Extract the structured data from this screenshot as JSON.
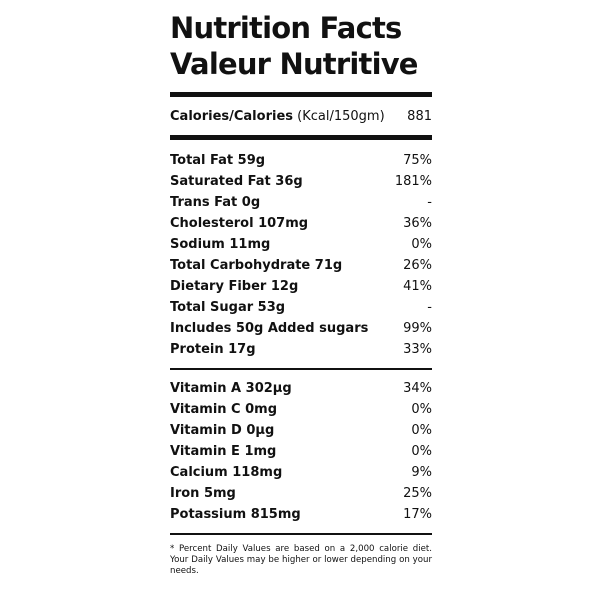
{
  "title_en": "Nutrition Facts",
  "title_fr": "Valeur Nutritive",
  "calories": {
    "label": "Calories/Calories",
    "unit": "(Kcal/150gm)",
    "value": "881"
  },
  "nutrients": [
    {
      "name": "Total Fat 59g",
      "dv": "75%"
    },
    {
      "name": "Saturated Fat 36g",
      "dv": "181%"
    },
    {
      "name": "Trans Fat 0g",
      "dv": "-"
    },
    {
      "name": "Cholesterol 107mg",
      "dv": "36%"
    },
    {
      "name": "Sodium 11mg",
      "dv": "0%"
    },
    {
      "name": "Total Carbohydrate 71g",
      "dv": "26%"
    },
    {
      "name": "Dietary Fiber 12g",
      "dv": "41%"
    },
    {
      "name": "Total Sugar 53g",
      "dv": "-"
    },
    {
      "name": "Includes 50g Added sugars",
      "dv": "99%"
    },
    {
      "name": "Protein 17g",
      "dv": "33%"
    }
  ],
  "vitamins": [
    {
      "name": "Vitamin A 302µg",
      "dv": "34%"
    },
    {
      "name": "Vitamin C 0mg",
      "dv": "0%"
    },
    {
      "name": "Vitamin D 0µg",
      "dv": "0%"
    },
    {
      "name": "Vitamin E 1mg",
      "dv": "0%"
    },
    {
      "name": "Calcium 118mg",
      "dv": "9%"
    },
    {
      "name": "Iron 5mg",
      "dv": "25%"
    },
    {
      "name": "Potassium 815mg",
      "dv": "17%"
    }
  ],
  "footnote": "* Percent Daily Values are based on a 2,000 calorie diet. Your Daily Values may be higher or lower depending on your needs."
}
